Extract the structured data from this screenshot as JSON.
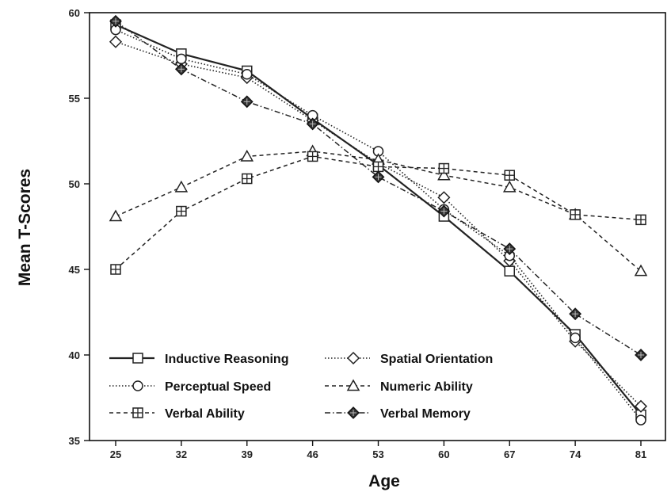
{
  "chart_data": {
    "type": "line",
    "title": "",
    "xlabel": "Age",
    "ylabel": "Mean T-Scores",
    "x": [
      25,
      32,
      39,
      46,
      53,
      60,
      67,
      74,
      81
    ],
    "xticks": [
      "25",
      "32",
      "39",
      "46",
      "53",
      "60",
      "67",
      "74",
      "81"
    ],
    "yticks": [
      "35",
      "40",
      "45",
      "50",
      "55",
      "60"
    ],
    "ylim": [
      35,
      60
    ],
    "grid": false,
    "legend_position": "bottom-left",
    "series": [
      {
        "name": "Inductive Reasoning",
        "marker": "square",
        "dash": "solid",
        "values": [
          59.3,
          57.6,
          56.6,
          53.8,
          51.1,
          48.1,
          44.9,
          41.2,
          36.5
        ]
      },
      {
        "name": "Spatial Orientation",
        "marker": "diamond",
        "dash": "dotted",
        "values": [
          58.3,
          57.0,
          56.2,
          53.7,
          51.2,
          49.2,
          45.5,
          40.8,
          37.0
        ]
      },
      {
        "name": "Perceptual Speed",
        "marker": "circle",
        "dash": "dotted",
        "values": [
          59.0,
          57.3,
          56.4,
          54.0,
          51.9,
          48.5,
          45.8,
          41.0,
          36.2
        ]
      },
      {
        "name": "Numeric Ability",
        "marker": "triangle",
        "dash": "dashed",
        "values": [
          48.1,
          49.8,
          51.6,
          51.9,
          51.4,
          50.5,
          49.8,
          48.2,
          44.9
        ]
      },
      {
        "name": "Verbal Ability",
        "marker": "square-plus",
        "dash": "dashed",
        "values": [
          45.0,
          48.4,
          50.3,
          51.6,
          51.0,
          50.9,
          50.5,
          48.2,
          47.9
        ]
      },
      {
        "name": "Verbal Memory",
        "marker": "diamond-filled",
        "dash": "dashdot",
        "values": [
          59.5,
          56.7,
          54.8,
          53.5,
          50.4,
          48.4,
          46.2,
          42.4,
          40.0
        ]
      }
    ]
  }
}
